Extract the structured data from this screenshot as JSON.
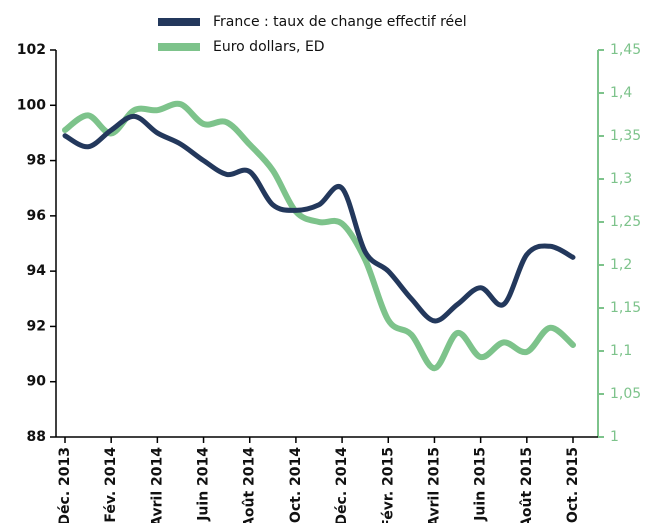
{
  "chart_data": {
    "type": "line",
    "categories": [
      "Déc. 2013",
      null,
      "Fév. 2014",
      null,
      "Avril 2014",
      null,
      "Juin 2014",
      null,
      "Août 2014",
      null,
      "Oct. 2014",
      null,
      "Déc. 2014",
      null,
      "Févr. 2015",
      null,
      "Avril 2015",
      null,
      "Juin 2015",
      null,
      "Août 2015",
      null,
      "Oct. 2015"
    ],
    "series": [
      {
        "name": "France : taux de change effectif réel",
        "color": "#23385c",
        "values": [
          98.9,
          98.5,
          99.1,
          99.6,
          99.0,
          98.6,
          98.0,
          97.5,
          97.6,
          96.4,
          96.2,
          96.4,
          97.0,
          94.7,
          94.0,
          93.0,
          92.2,
          92.8,
          93.4,
          92.8,
          94.6,
          94.9,
          94.5
        ]
      },
      {
        "name": "Euro dollars, ED",
        "color": "#7dc38b",
        "axis": "y2",
        "values": [
          1.357,
          1.374,
          1.353,
          1.38,
          1.38,
          1.387,
          1.364,
          1.366,
          1.34,
          1.31,
          1.262,
          1.25,
          1.248,
          1.206,
          1.136,
          1.119,
          1.08,
          1.121,
          1.093,
          1.11,
          1.099,
          1.127,
          1.107
        ]
      }
    ],
    "ylim": [
      88,
      102
    ],
    "yticks": [
      88,
      90,
      92,
      94,
      96,
      98,
      100,
      102
    ],
    "y2lim": [
      1,
      1.45
    ],
    "y2ticks": [
      1,
      {
        "value": 1.05,
        "label": "1,05"
      },
      {
        "value": 1.1,
        "label": "1,1"
      },
      {
        "value": 1.15,
        "label": "1,15"
      },
      {
        "value": 1.2,
        "label": "1,2"
      },
      {
        "value": 1.25,
        "label": "1,25"
      },
      {
        "value": 1.3,
        "label": "1,3"
      },
      {
        "value": 1.35,
        "label": "1,35"
      },
      {
        "value": 1.4,
        "label": "1,4"
      },
      {
        "value": 1.45,
        "label": "1,45"
      }
    ],
    "legend": "top"
  }
}
